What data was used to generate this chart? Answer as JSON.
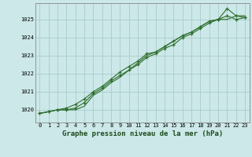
{
  "title": "Graphe pression niveau de la mer (hPa)",
  "bg_color": "#cce8e8",
  "grid_color": "#aacccc",
  "line_color": "#2d6e2d",
  "marker_color": "#2d6e2d",
  "xlim": [
    -0.5,
    23.5
  ],
  "ylim": [
    1019.3,
    1025.9
  ],
  "yticks": [
    1020,
    1021,
    1022,
    1023,
    1024,
    1025
  ],
  "xticks": [
    0,
    1,
    2,
    3,
    4,
    5,
    6,
    7,
    8,
    9,
    10,
    11,
    12,
    13,
    14,
    15,
    16,
    17,
    18,
    19,
    20,
    21,
    22,
    23
  ],
  "series1": [
    1019.8,
    1019.9,
    1020.0,
    1020.0,
    1020.1,
    1020.4,
    1020.9,
    1021.2,
    1021.6,
    1021.9,
    1022.2,
    1022.5,
    1022.9,
    1023.1,
    1023.4,
    1023.6,
    1024.0,
    1024.2,
    1024.5,
    1024.8,
    1025.0,
    1025.6,
    1025.2,
    1025.1
  ],
  "series2": [
    1019.8,
    1019.9,
    1020.0,
    1020.1,
    1020.3,
    1020.6,
    1021.0,
    1021.3,
    1021.7,
    1022.1,
    1022.4,
    1022.7,
    1023.1,
    1023.2,
    1023.5,
    1023.8,
    1024.1,
    1024.3,
    1024.6,
    1024.9,
    1025.0,
    1025.2,
    1025.0,
    1025.1
  ],
  "series3": [
    1019.8,
    1019.9,
    1020.0,
    1020.0,
    1020.0,
    1020.2,
    1020.8,
    1021.1,
    1021.5,
    1021.8,
    1022.2,
    1022.6,
    1023.0,
    1023.2,
    1023.5,
    1023.8,
    1024.1,
    1024.3,
    1024.6,
    1024.9,
    1025.0,
    1025.0,
    1025.2,
    1025.2
  ],
  "ylabel_fontsize": 5.0,
  "xlabel_fontsize": 5.0,
  "title_fontsize": 6.5
}
